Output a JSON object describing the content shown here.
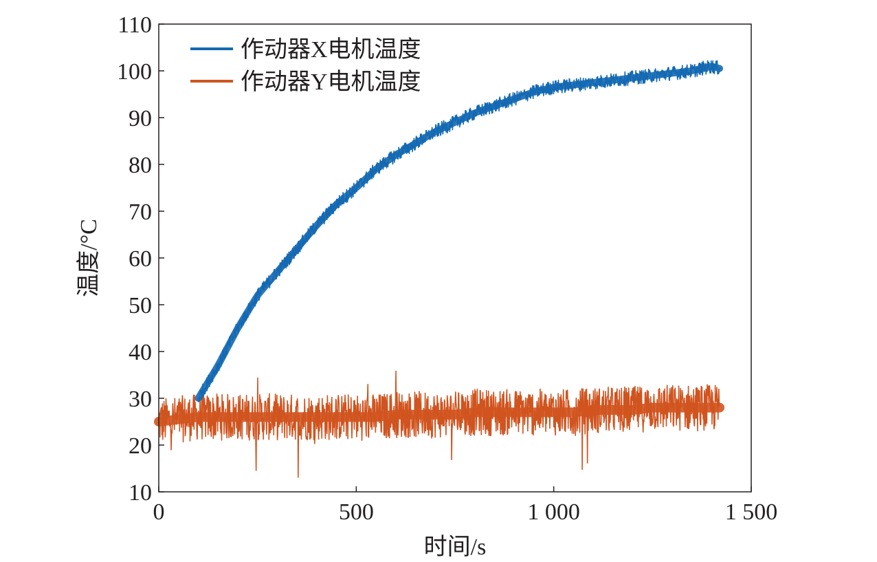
{
  "chart_data": {
    "type": "line",
    "title": "",
    "xlabel": "时间/s",
    "ylabel": "温度/°C",
    "xlim": [
      0,
      1500
    ],
    "ylim": [
      10,
      110
    ],
    "x_ticks": [
      0,
      500,
      1000,
      1500
    ],
    "x_tick_labels": [
      "0",
      "500",
      "1 000",
      "1 500"
    ],
    "y_ticks": [
      10,
      20,
      30,
      40,
      50,
      60,
      70,
      80,
      90,
      100,
      110
    ],
    "y_tick_labels": [
      "10",
      "20",
      "30",
      "40",
      "50",
      "60",
      "70",
      "80",
      "90",
      "100",
      "110"
    ],
    "grid": false,
    "legend_position": "top-left",
    "x": [
      0,
      50,
      100,
      150,
      200,
      250,
      300,
      350,
      400,
      450,
      500,
      550,
      600,
      650,
      700,
      750,
      800,
      850,
      900,
      950,
      1000,
      1050,
      1100,
      1150,
      1200,
      1250,
      1300,
      1350,
      1400,
      1420
    ],
    "series": [
      {
        "name": "作动器X电机温度",
        "color": "#1469b2",
        "x": [
          100,
          150,
          200,
          250,
          300,
          350,
          400,
          450,
          500,
          550,
          600,
          650,
          700,
          750,
          800,
          850,
          900,
          950,
          1000,
          1050,
          1100,
          1150,
          1200,
          1250,
          1300,
          1350,
          1400,
          1420
        ],
        "values": [
          30,
          37,
          45,
          52,
          57,
          62,
          67,
          71.5,
          75,
          79,
          82,
          84.5,
          87,
          89,
          91,
          92.5,
          94,
          95.5,
          96.5,
          97,
          97.5,
          98,
          98.5,
          99,
          99.5,
          100,
          101,
          100.5
        ],
        "noise_band": 1.5
      },
      {
        "name": "作动器Y电机温度",
        "color": "#d0541f",
        "values": [
          25,
          25.5,
          26,
          26,
          26,
          26,
          26,
          26,
          26,
          26,
          26,
          26,
          26.5,
          26.5,
          26.5,
          26.5,
          27,
          27,
          27,
          27,
          27,
          27,
          27.5,
          27.5,
          27.5,
          28,
          28,
          28,
          28,
          28
        ],
        "noise_band": 5
      }
    ]
  }
}
